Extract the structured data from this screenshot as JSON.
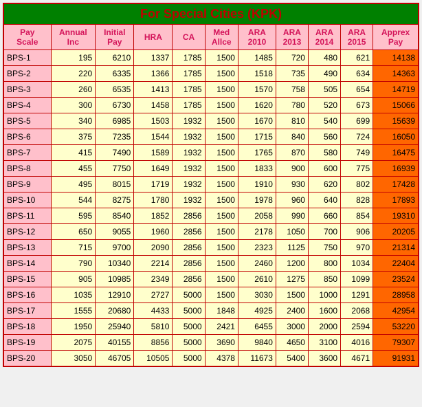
{
  "title": "For Special Cities (KPK)",
  "colors": {
    "title_bg": "#008000",
    "title_fg": "#c00000",
    "header_bg": "#ffc0cb",
    "header_fg": "#d4145a",
    "cell_bg": "#ffffcc",
    "scale_bg": "#ffc0cb",
    "apx_bg": "#ff6600",
    "border": "#c00000"
  },
  "columns": [
    "Pay Scale",
    "Annual Inc",
    "Initial Pay",
    "HRA",
    "CA",
    "Med Allce",
    "ARA 2010",
    "ARA 2013",
    "ARA 2014",
    "ARA 2015",
    "Apprex Pay"
  ],
  "rows": [
    [
      "BPS-1",
      "195",
      "6210",
      "1337",
      "1785",
      "1500",
      "1485",
      "720",
      "480",
      "621",
      "14138"
    ],
    [
      "BPS-2",
      "220",
      "6335",
      "1366",
      "1785",
      "1500",
      "1518",
      "735",
      "490",
      "634",
      "14363"
    ],
    [
      "BPS-3",
      "260",
      "6535",
      "1413",
      "1785",
      "1500",
      "1570",
      "758",
      "505",
      "654",
      "14719"
    ],
    [
      "BPS-4",
      "300",
      "6730",
      "1458",
      "1785",
      "1500",
      "1620",
      "780",
      "520",
      "673",
      "15066"
    ],
    [
      "BPS-5",
      "340",
      "6985",
      "1503",
      "1932",
      "1500",
      "1670",
      "810",
      "540",
      "699",
      "15639"
    ],
    [
      "BPS-6",
      "375",
      "7235",
      "1544",
      "1932",
      "1500",
      "1715",
      "840",
      "560",
      "724",
      "16050"
    ],
    [
      "BPS-7",
      "415",
      "7490",
      "1589",
      "1932",
      "1500",
      "1765",
      "870",
      "580",
      "749",
      "16475"
    ],
    [
      "BPS-8",
      "455",
      "7750",
      "1649",
      "1932",
      "1500",
      "1833",
      "900",
      "600",
      "775",
      "16939"
    ],
    [
      "BPS-9",
      "495",
      "8015",
      "1719",
      "1932",
      "1500",
      "1910",
      "930",
      "620",
      "802",
      "17428"
    ],
    [
      "BPS-10",
      "544",
      "8275",
      "1780",
      "1932",
      "1500",
      "1978",
      "960",
      "640",
      "828",
      "17893"
    ],
    [
      "BPS-11",
      "595",
      "8540",
      "1852",
      "2856",
      "1500",
      "2058",
      "990",
      "660",
      "854",
      "19310"
    ],
    [
      "BPS-12",
      "650",
      "9055",
      "1960",
      "2856",
      "1500",
      "2178",
      "1050",
      "700",
      "906",
      "20205"
    ],
    [
      "BPS-13",
      "715",
      "9700",
      "2090",
      "2856",
      "1500",
      "2323",
      "1125",
      "750",
      "970",
      "21314"
    ],
    [
      "BPS-14",
      "790",
      "10340",
      "2214",
      "2856",
      "1500",
      "2460",
      "1200",
      "800",
      "1034",
      "22404"
    ],
    [
      "BPS-15",
      "905",
      "10985",
      "2349",
      "2856",
      "1500",
      "2610",
      "1275",
      "850",
      "1099",
      "23524"
    ],
    [
      "BPS-16",
      "1035",
      "12910",
      "2727",
      "5000",
      "1500",
      "3030",
      "1500",
      "1000",
      "1291",
      "28958"
    ],
    [
      "BPS-17",
      "1555",
      "20680",
      "4433",
      "5000",
      "1848",
      "4925",
      "2400",
      "1600",
      "2068",
      "42954"
    ],
    [
      "BPS-18",
      "1950",
      "25940",
      "5810",
      "5000",
      "2421",
      "6455",
      "3000",
      "2000",
      "2594",
      "53220"
    ],
    [
      "BPS-19",
      "2075",
      "40155",
      "8856",
      "5000",
      "3690",
      "9840",
      "4650",
      "3100",
      "4016",
      "79307"
    ],
    [
      "BPS-20",
      "3050",
      "46705",
      "10505",
      "5000",
      "4378",
      "11673",
      "5400",
      "3600",
      "4671",
      "91931"
    ]
  ]
}
